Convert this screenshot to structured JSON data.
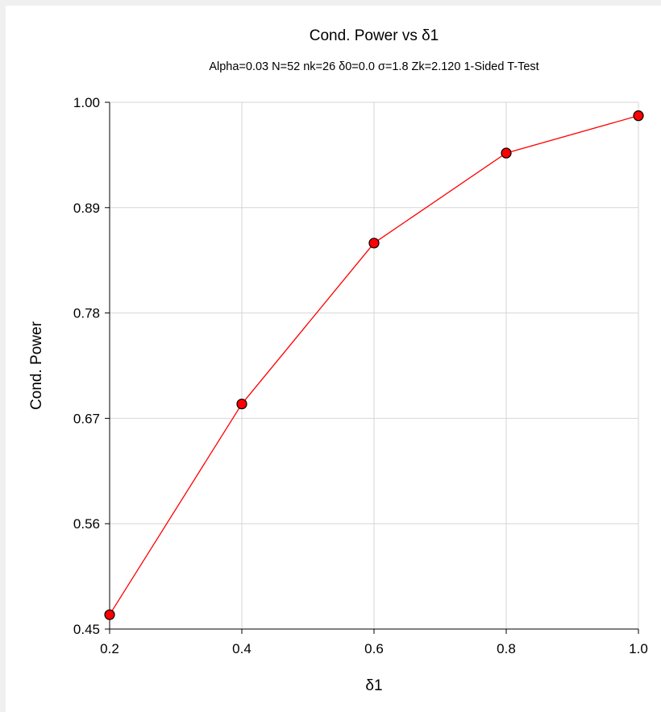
{
  "chart_data": {
    "type": "line",
    "title": "Cond. Power vs δ1",
    "subtitle": "Alpha=0.03 N=52 nk=26 δ0=0.0 σ=1.8 Zk=2.120 1-Sided T-Test",
    "xlabel": "δ1",
    "ylabel": "Cond. Power",
    "x": [
      0.2,
      0.4,
      0.6,
      0.8,
      1.0
    ],
    "series": [
      {
        "values": [
          0.465,
          0.685,
          0.853,
          0.947,
          0.986
        ],
        "color": "#ff0000",
        "marker": "circle"
      }
    ],
    "xlim": [
      0.2,
      1.0
    ],
    "ylim": [
      0.45,
      1.0
    ],
    "xticks": [
      "0.2",
      "0.4",
      "0.6",
      "0.8",
      "1.0"
    ],
    "yticks": [
      "0.45",
      "0.56",
      "0.67",
      "0.78",
      "0.89",
      "1.00"
    ],
    "grid": true,
    "legend": "none"
  }
}
